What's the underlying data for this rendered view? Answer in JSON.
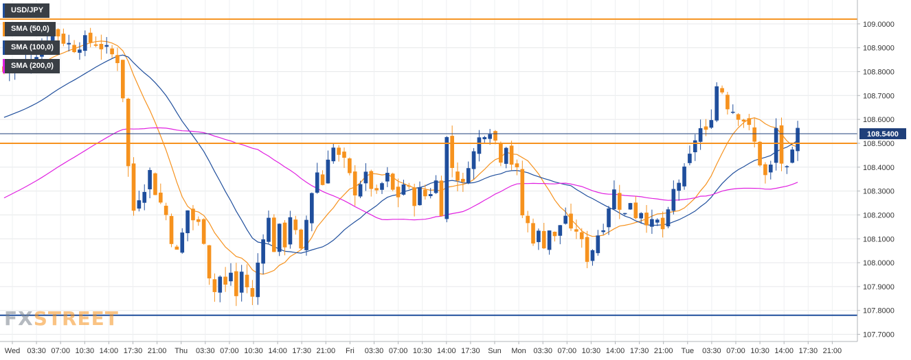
{
  "chart_data": {
    "type": "candlestick",
    "symbol": "USD/JPY",
    "ylim": [
      107.67,
      109.1
    ],
    "y_ticks": [
      "109.0000",
      "108.9000",
      "108.8000",
      "108.7000",
      "108.6000",
      "108.5000",
      "108.4000",
      "108.3000",
      "108.2000",
      "108.1000",
      "108.0000",
      "107.9000",
      "107.8000",
      "107.7000"
    ],
    "x_labels": [
      "Wed",
      "03:30",
      "07:00",
      "10:30",
      "14:00",
      "17:30",
      "21:00",
      "Thu",
      "03:30",
      "07:00",
      "10:30",
      "14:00",
      "17:30",
      "21:00",
      "Fri",
      "03:30",
      "07:00",
      "10:30",
      "14:00",
      "17:30",
      "Sun",
      "Mon",
      "03:30",
      "07:00",
      "10:30",
      "14:00",
      "17:30",
      "21:00",
      "Tue",
      "03:30",
      "07:00",
      "10:30",
      "14:00",
      "17:30",
      "21:00"
    ],
    "current_price": {
      "value": 108.54,
      "label": "108.5400"
    },
    "horizontal_levels": [
      {
        "value": 109.02,
        "color": "#f6921e"
      },
      {
        "value": 108.5,
        "color": "#f6921e"
      },
      {
        "value": 107.78,
        "color": "#1f4e9c"
      }
    ],
    "legend": [
      {
        "label": "USD/JPY",
        "color": "#1f4e9c"
      },
      {
        "label": "SMA (50,0)",
        "color": "#f6921e"
      },
      {
        "label": "SMA (100,0)",
        "color": "#1f4e9c"
      },
      {
        "label": "SMA (200,0)",
        "color": "#e020e0"
      }
    ],
    "colors": {
      "up": "#1f4e9c",
      "down": "#f6921e"
    },
    "price_anchors": [
      [
        0,
        108.8
      ],
      [
        3,
        108.82
      ],
      [
        6,
        108.88
      ],
      [
        9,
        108.98
      ],
      [
        11,
        108.93
      ],
      [
        13,
        108.9
      ],
      [
        15,
        108.93
      ],
      [
        17,
        108.92
      ],
      [
        19,
        108.89
      ],
      [
        21,
        108.85
      ],
      [
        22,
        108.7
      ],
      [
        23,
        108.4
      ],
      [
        24,
        108.22
      ],
      [
        25,
        108.28
      ],
      [
        26,
        108.32
      ],
      [
        27,
        108.38
      ],
      [
        28,
        108.3
      ],
      [
        30,
        108.2
      ],
      [
        31,
        108.1
      ],
      [
        32,
        108.04
      ],
      [
        33,
        108.12
      ],
      [
        34,
        108.22
      ],
      [
        35,
        108.18
      ],
      [
        36,
        108.16
      ],
      [
        37,
        108.1
      ],
      [
        38,
        107.95
      ],
      [
        39,
        107.88
      ],
      [
        40,
        107.94
      ],
      [
        41,
        107.9
      ],
      [
        42,
        107.96
      ],
      [
        43,
        107.86
      ],
      [
        44,
        107.96
      ],
      [
        45,
        107.9
      ],
      [
        46,
        107.85
      ],
      [
        47,
        108.0
      ],
      [
        48,
        108.12
      ],
      [
        49,
        108.18
      ],
      [
        50,
        108.06
      ],
      [
        51,
        108.14
      ],
      [
        52,
        108.08
      ],
      [
        53,
        108.2
      ],
      [
        54,
        108.12
      ],
      [
        55,
        108.04
      ],
      [
        56,
        108.18
      ],
      [
        57,
        108.3
      ],
      [
        58,
        108.38
      ],
      [
        59,
        108.33
      ],
      [
        60,
        108.45
      ],
      [
        61,
        108.48
      ],
      [
        62,
        108.44
      ],
      [
        63,
        108.42
      ],
      [
        64,
        108.36
      ],
      [
        65,
        108.3
      ],
      [
        66,
        108.34
      ],
      [
        67,
        108.36
      ],
      [
        68,
        108.32
      ],
      [
        69,
        108.28
      ],
      [
        70,
        108.33
      ],
      [
        71,
        108.36
      ],
      [
        72,
        108.3
      ],
      [
        73,
        108.28
      ],
      [
        74,
        108.33
      ],
      [
        75,
        108.3
      ],
      [
        76,
        108.26
      ],
      [
        77,
        108.3
      ],
      [
        78,
        108.28
      ],
      [
        79,
        108.3
      ],
      [
        80,
        108.34
      ],
      [
        81,
        108.22
      ],
      [
        82,
        108.52
      ],
      [
        83,
        108.4
      ],
      [
        84,
        108.36
      ],
      [
        85,
        108.32
      ],
      [
        86,
        108.42
      ],
      [
        87,
        108.46
      ],
      [
        88,
        108.52
      ],
      [
        89,
        108.55
      ],
      [
        90,
        108.56
      ],
      [
        91,
        108.51
      ],
      [
        92,
        108.44
      ],
      [
        93,
        108.5
      ],
      [
        94,
        108.42
      ],
      [
        95,
        108.38
      ],
      [
        96,
        108.2
      ],
      [
        97,
        108.16
      ],
      [
        98,
        108.1
      ],
      [
        99,
        108.12
      ],
      [
        100,
        108.08
      ],
      [
        101,
        108.14
      ],
      [
        102,
        108.1
      ],
      [
        103,
        108.16
      ],
      [
        104,
        108.2
      ],
      [
        105,
        108.12
      ],
      [
        106,
        108.14
      ],
      [
        107,
        108.08
      ],
      [
        108,
        108.02
      ],
      [
        109,
        108.06
      ],
      [
        110,
        108.12
      ],
      [
        111,
        108.16
      ],
      [
        112,
        108.24
      ],
      [
        113,
        108.3
      ],
      [
        114,
        108.24
      ],
      [
        115,
        108.2
      ],
      [
        116,
        108.26
      ],
      [
        117,
        108.2
      ],
      [
        118,
        108.22
      ],
      [
        119,
        108.18
      ],
      [
        120,
        108.16
      ],
      [
        121,
        108.17
      ],
      [
        122,
        108.14
      ],
      [
        123,
        108.2
      ],
      [
        124,
        108.3
      ],
      [
        125,
        108.34
      ],
      [
        126,
        108.38
      ],
      [
        127,
        108.44
      ],
      [
        128,
        108.52
      ],
      [
        129,
        108.56
      ],
      [
        130,
        108.54
      ],
      [
        131,
        108.62
      ],
      [
        132,
        108.74
      ],
      [
        133,
        108.72
      ],
      [
        134,
        108.66
      ],
      [
        135,
        108.64
      ],
      [
        136,
        108.62
      ],
      [
        137,
        108.6
      ],
      [
        138,
        108.56
      ],
      [
        139,
        108.5
      ],
      [
        140,
        108.42
      ],
      [
        141,
        108.36
      ],
      [
        142,
        108.4
      ],
      [
        143,
        108.56
      ],
      [
        144,
        108.42
      ],
      [
        145,
        108.38
      ],
      [
        146,
        108.45
      ],
      [
        147,
        108.55
      ]
    ]
  }
}
